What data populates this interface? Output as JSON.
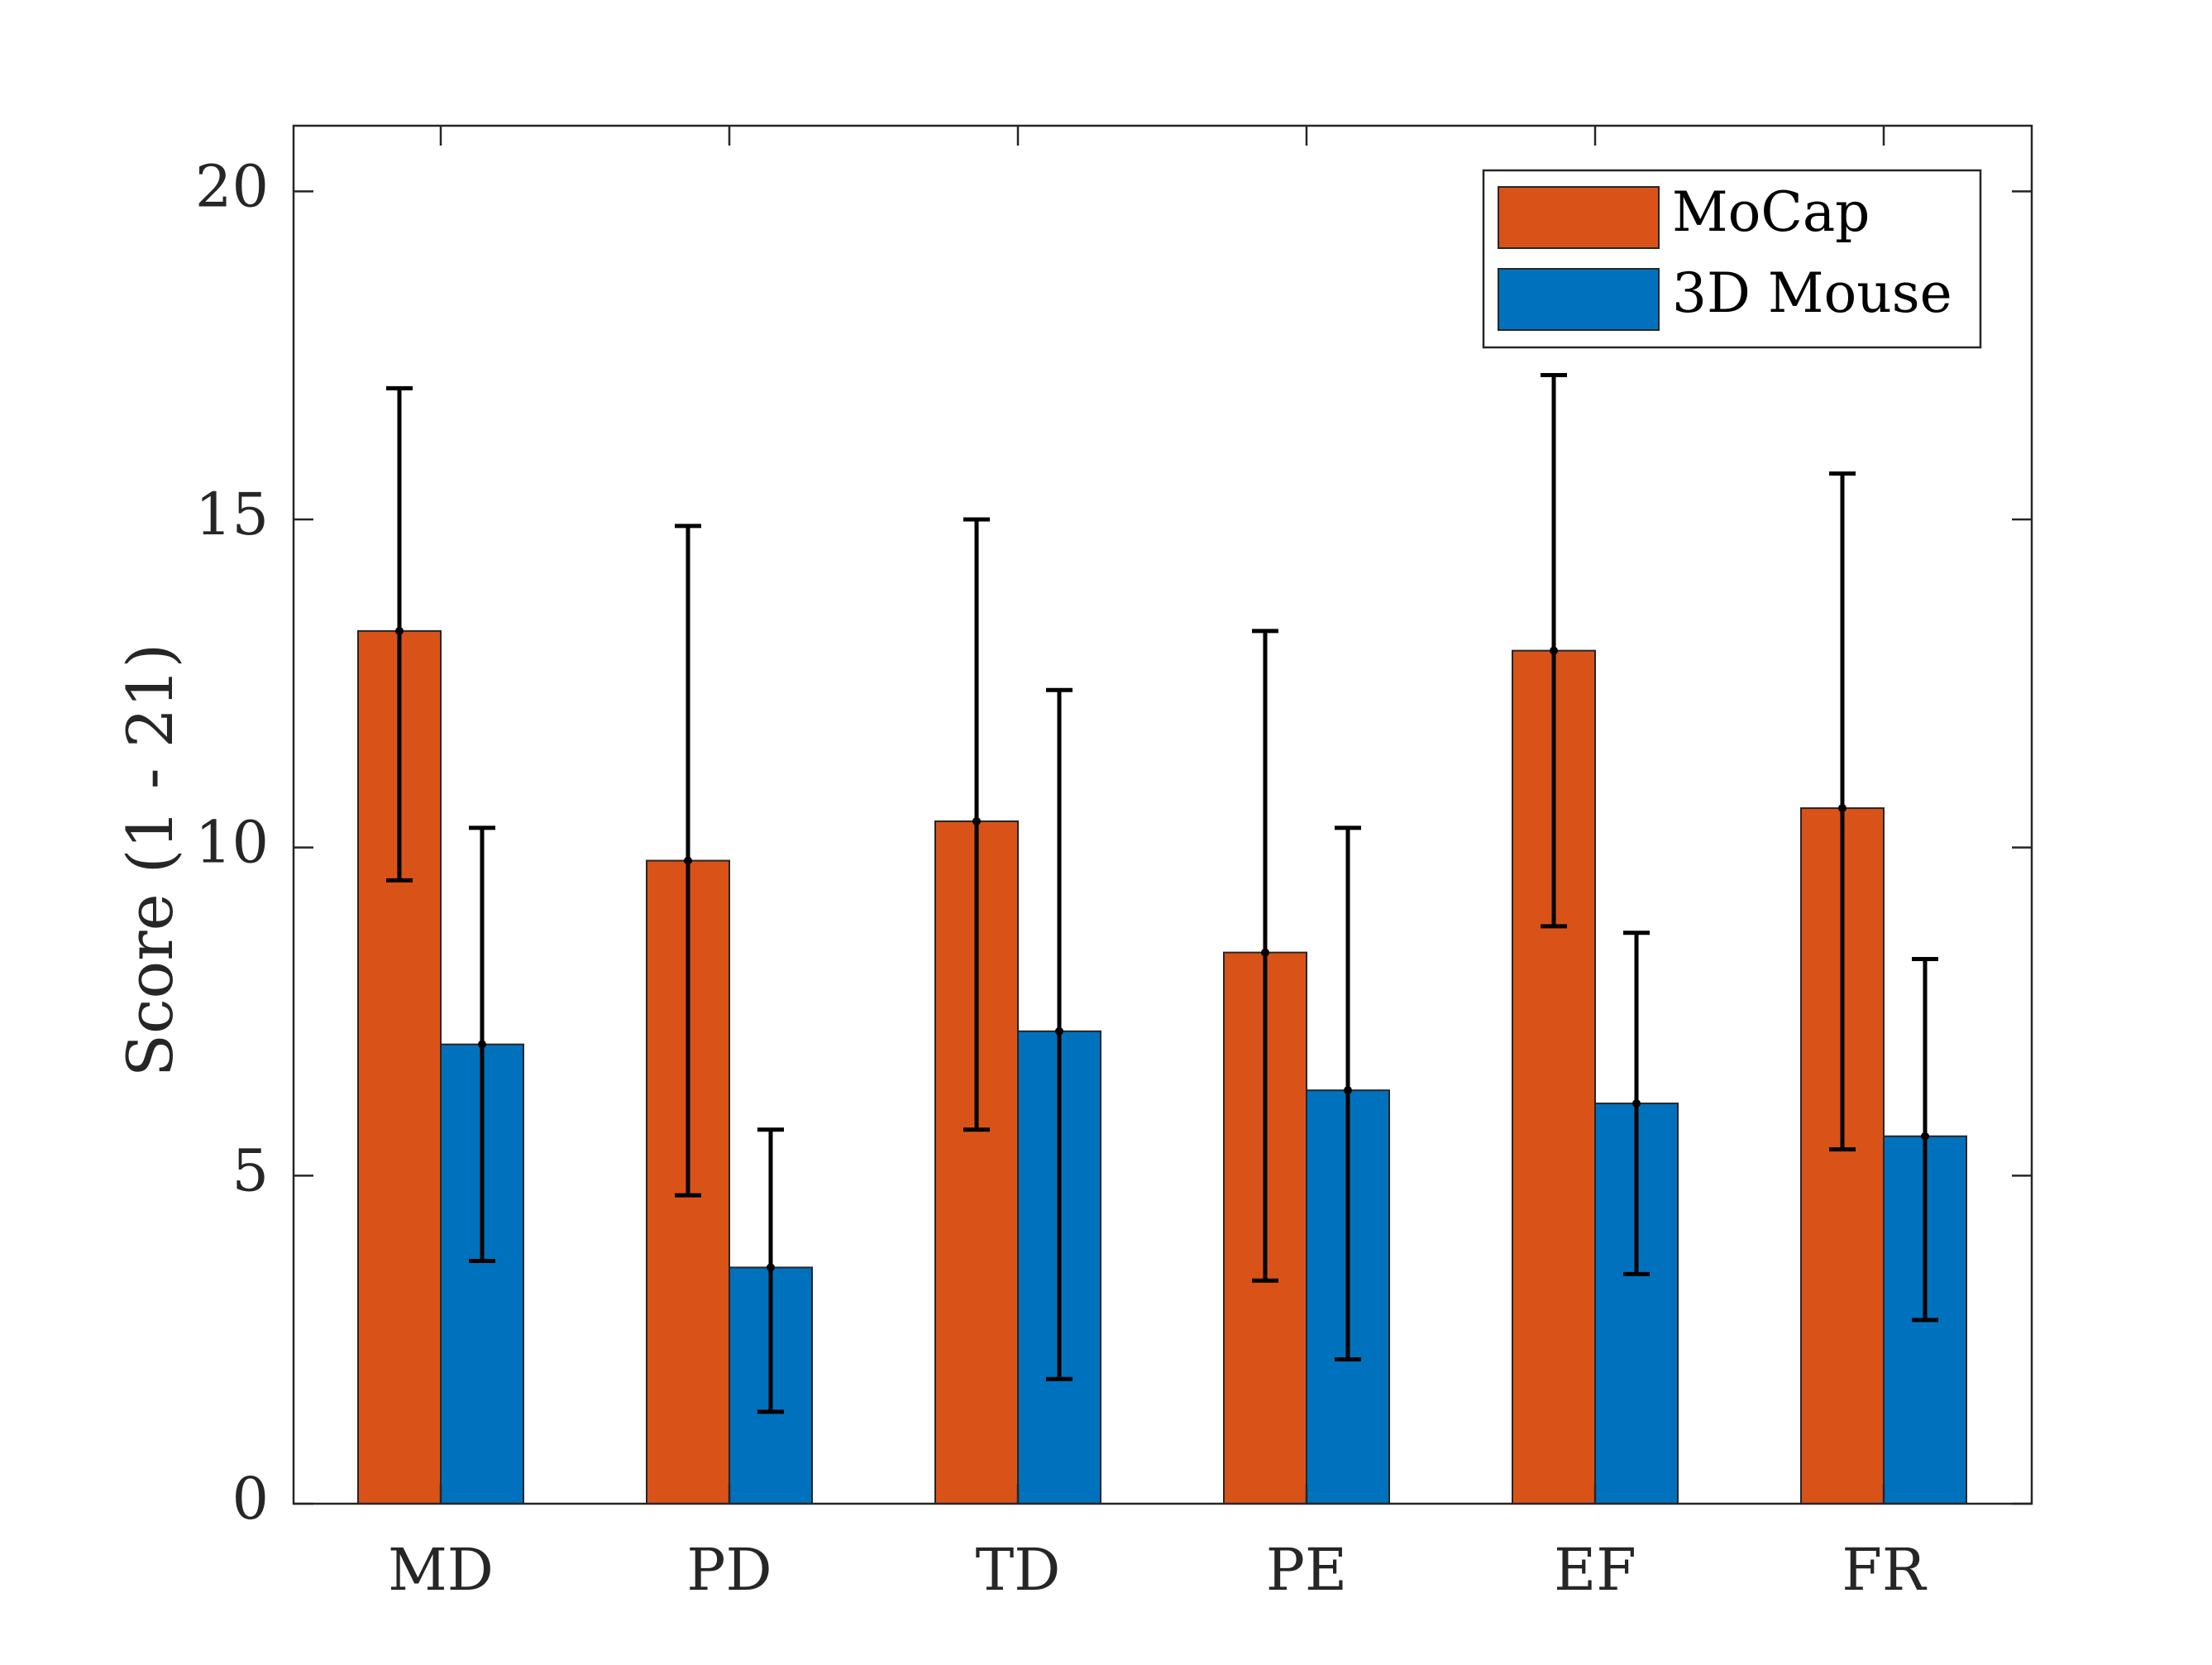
{
  "chart_data": {
    "type": "bar",
    "categories": [
      "MD",
      "PD",
      "TD",
      "PE",
      "EF",
      "FR"
    ],
    "series": [
      {
        "name": "MoCap",
        "color": "#D95319",
        "values": [
          13.3,
          9.8,
          10.4,
          8.4,
          13.0,
          10.6
        ],
        "error_low": [
          9.5,
          4.7,
          5.7,
          3.4,
          8.8,
          5.4
        ],
        "error_high": [
          17.0,
          14.9,
          15.0,
          13.3,
          17.2,
          15.7
        ]
      },
      {
        "name": "3D Mouse",
        "color": "#0072BD",
        "values": [
          7.0,
          3.6,
          7.2,
          6.3,
          6.1,
          5.6
        ],
        "error_low": [
          3.7,
          1.4,
          1.9,
          2.2,
          3.5,
          2.8
        ],
        "error_high": [
          10.3,
          5.7,
          12.4,
          10.3,
          8.7,
          8.3
        ]
      }
    ],
    "ylabel": "Score (1 - 21)",
    "xlabel": "",
    "title": "",
    "ylim": [
      0,
      21
    ],
    "yticks": [
      "0",
      "5",
      "10",
      "15",
      "20"
    ],
    "grid": false,
    "legend_position": "top-right"
  }
}
